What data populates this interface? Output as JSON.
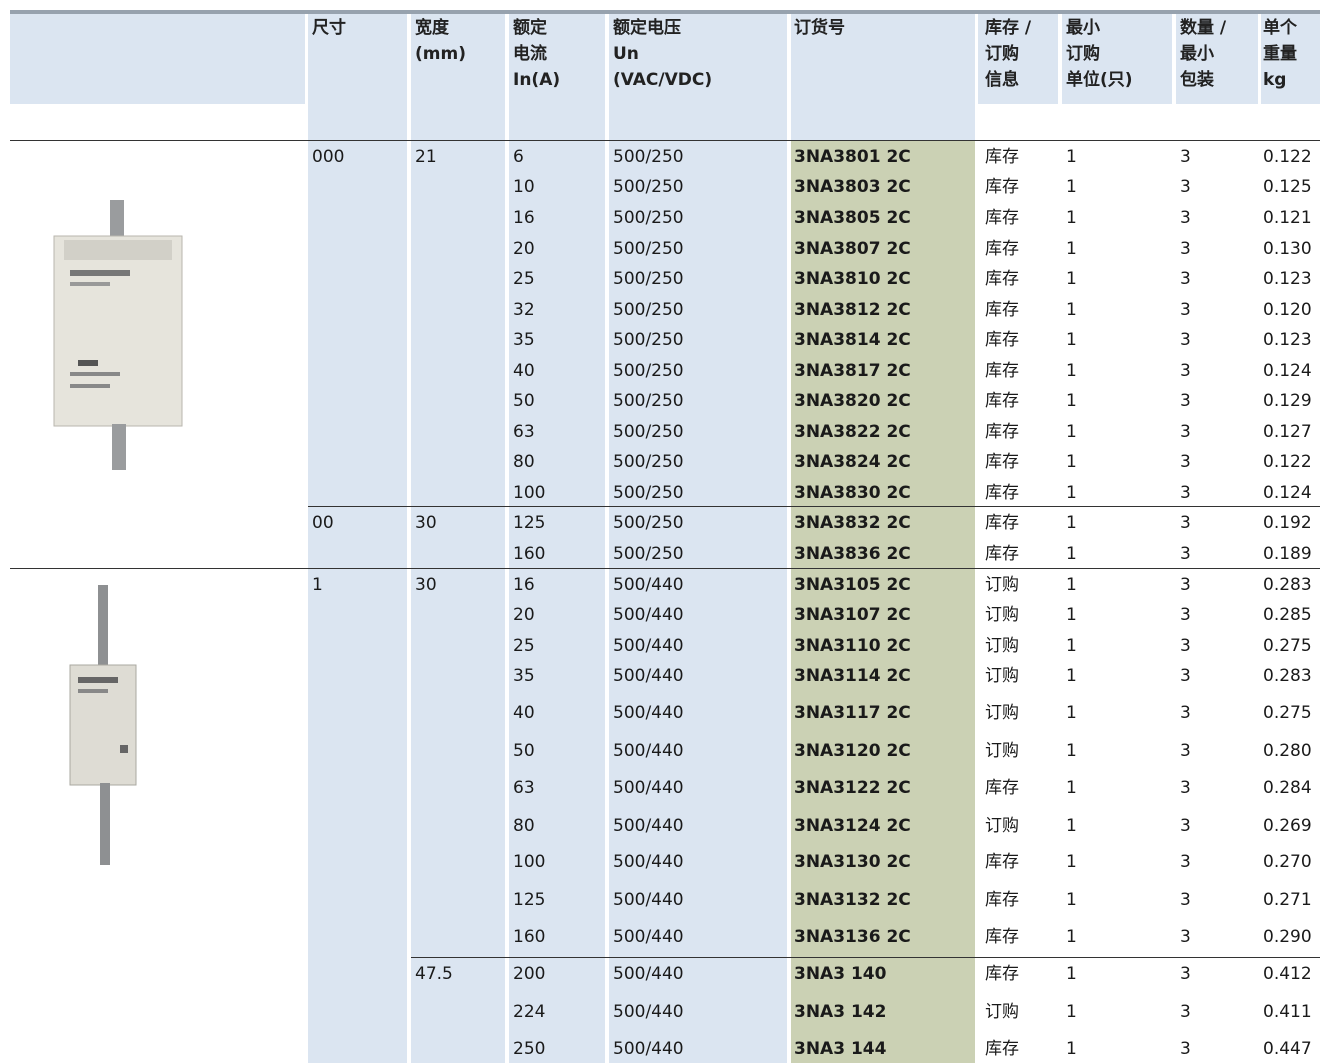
{
  "header": {
    "columns": [
      [
        "尺寸"
      ],
      [
        "宽度",
        "(mm)"
      ],
      [
        "额定",
        "电流",
        "In(A)"
      ],
      [
        "额定电压",
        "Un",
        "(VAC/VDC)"
      ],
      [
        "订货号"
      ],
      [
        "库存 /",
        "订购",
        "信息"
      ],
      [
        "最小",
        "订购",
        "单位(只)"
      ],
      [
        "数量 /",
        "最小",
        "包装"
      ],
      [
        "单个",
        "重量",
        "kg"
      ]
    ]
  },
  "sections": [
    {
      "blocks": [
        {
          "size": "000",
          "width": "21",
          "rows": [
            [
              "6",
              "500/250",
              "3NA3801 2C",
              "库存",
              "1",
              "3",
              "0.122"
            ],
            [
              "10",
              "500/250",
              "3NA3803 2C",
              "库存",
              "1",
              "3",
              "0.125"
            ],
            [
              "16",
              "500/250",
              "3NA3805 2C",
              "库存",
              "1",
              "3",
              "0.121"
            ],
            [
              "20",
              "500/250",
              "3NA3807 2C",
              "库存",
              "1",
              "3",
              "0.130"
            ],
            [
              "25",
              "500/250",
              "3NA3810 2C",
              "库存",
              "1",
              "3",
              "0.123"
            ],
            [
              "32",
              "500/250",
              "3NA3812 2C",
              "库存",
              "1",
              "3",
              "0.120"
            ],
            [
              "35",
              "500/250",
              "3NA3814 2C",
              "库存",
              "1",
              "3",
              "0.123"
            ],
            [
              "40",
              "500/250",
              "3NA3817 2C",
              "库存",
              "1",
              "3",
              "0.124"
            ],
            [
              "50",
              "500/250",
              "3NA3820 2C",
              "库存",
              "1",
              "3",
              "0.129"
            ],
            [
              "63",
              "500/250",
              "3NA3822 2C",
              "库存",
              "1",
              "3",
              "0.127"
            ],
            [
              "80",
              "500/250",
              "3NA3824 2C",
              "库存",
              "1",
              "3",
              "0.122"
            ],
            [
              "100",
              "500/250",
              "3NA3830 2C",
              "库存",
              "1",
              "3",
              "0.124"
            ]
          ]
        },
        {
          "size": "00",
          "width": "30",
          "rows": [
            [
              "125",
              "500/250",
              "3NA3832 2C",
              "库存",
              "1",
              "3",
              "0.192"
            ],
            [
              "160",
              "500/250",
              "3NA3836 2C",
              "库存",
              "1",
              "3",
              "0.189"
            ]
          ]
        }
      ]
    },
    {
      "blocks": [
        {
          "size": "1",
          "width": "30",
          "rows": [
            [
              "16",
              "500/440",
              "3NA3105 2C",
              "订购",
              "1",
              "3",
              "0.283"
            ],
            [
              "20",
              "500/440",
              "3NA3107 2C",
              "订购",
              "1",
              "3",
              "0.285"
            ],
            [
              "25",
              "500/440",
              "3NA3110 2C",
              "订购",
              "1",
              "3",
              "0.275"
            ],
            [
              "35",
              "500/440",
              "3NA3114 2C",
              "订购",
              "1",
              "3",
              "0.283"
            ],
            [
              "40",
              "500/440",
              "3NA3117 2C",
              "订购",
              "1",
              "3",
              "0.275"
            ],
            [
              "50",
              "500/440",
              "3NA3120 2C",
              "订购",
              "1",
              "3",
              "0.280"
            ],
            [
              "63",
              "500/440",
              "3NA3122 2C",
              "库存",
              "1",
              "3",
              "0.284"
            ],
            [
              "80",
              "500/440",
              "3NA3124 2C",
              "订购",
              "1",
              "3",
              "0.269"
            ],
            [
              "100",
              "500/440",
              "3NA3130 2C",
              "库存",
              "1",
              "3",
              "0.270"
            ],
            [
              "125",
              "500/440",
              "3NA3132 2C",
              "库存",
              "1",
              "3",
              "0.271"
            ],
            [
              "160",
              "500/440",
              "3NA3136 2C",
              "库存",
              "1",
              "3",
              "0.290"
            ]
          ]
        },
        {
          "width": "47.5",
          "rows": [
            [
              "200",
              "500/440",
              "3NA3 140",
              "库存",
              "1",
              "3",
              "0.412"
            ],
            [
              "224",
              "500/440",
              "3NA3 142",
              "订购",
              "1",
              "3",
              "0.411"
            ],
            [
              "250",
              "500/440",
              "3NA3 144",
              "库存",
              "1",
              "3",
              "0.447"
            ]
          ]
        }
      ]
    }
  ]
}
